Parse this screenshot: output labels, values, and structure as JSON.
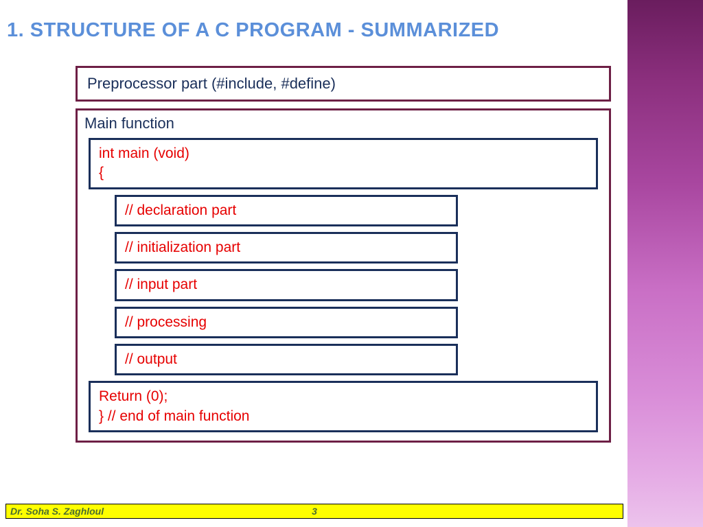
{
  "title": {
    "number": "1.",
    "text": "STRUCTURE OF A C PROGRAM - SUMMARIZED"
  },
  "preprocessor": {
    "label": "Preprocessor part (#include, #define)"
  },
  "main_function": {
    "label": "Main function",
    "signature": "int main (void)\n{",
    "parts": [
      "// declaration part",
      "// initialization part",
      "// input part",
      "// processing",
      "// output"
    ],
    "return_block": "Return (0);\n} // end of main function"
  },
  "footer": {
    "author": "Dr. Soha S. Zaghloul",
    "page": "3"
  },
  "colors": {
    "title_color": "#5b8fd9",
    "maroon_border": "#6d1f45",
    "navy_border": "#1a2f5a",
    "navy_text": "#1a2f5a",
    "red_text": "#e60000",
    "footer_bg": "#ffff00",
    "footer_text": "#4a6d2f",
    "gradient_top": "#6a1d5e",
    "gradient_bottom": "#ecc3ec"
  }
}
